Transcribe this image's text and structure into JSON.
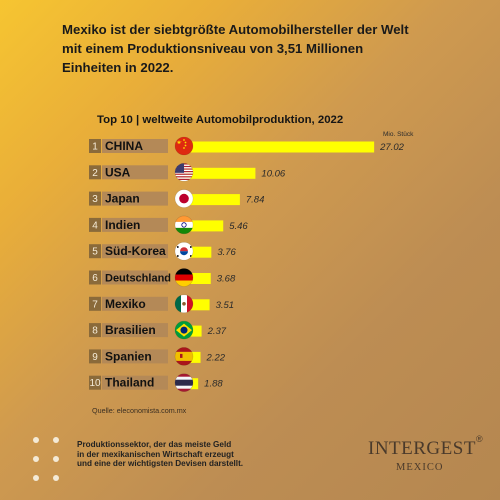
{
  "headline": {
    "line1": "Mexiko ist der siebtgrößte Automobilhersteller der Welt",
    "line2": "mit einem Produktionsniveau von 3,51 Millionen",
    "line3": "Einheiten in 2022."
  },
  "chart_data": {
    "type": "bar",
    "orientation": "horizontal",
    "title": "Top 10 | weltweite Automobilproduktion, 2022",
    "unit_label": "Mio. Stück",
    "ranks": [
      "1",
      "2",
      "3",
      "4",
      "5",
      "6",
      "7",
      "8",
      "9",
      "10"
    ],
    "categories": [
      "CHINA",
      "USA",
      "Japan",
      "Indien",
      "Süd-Korea",
      "Deutschland",
      "Mexiko",
      "Brasilien",
      "Spanien",
      "Thailand"
    ],
    "values": [
      27.02,
      10.06,
      7.84,
      5.46,
      3.76,
      3.68,
      3.51,
      2.37,
      2.22,
      1.88
    ],
    "value_labels": [
      "27.02",
      "10.06",
      "7.84",
      "5.46",
      "3.76",
      "3.68",
      "3.51",
      "2.37",
      "2.22",
      "1.88"
    ],
    "flag_icons": [
      "china-flag-icon",
      "usa-flag-icon",
      "japan-flag-icon",
      "india-flag-icon",
      "south-korea-flag-icon",
      "germany-flag-icon",
      "mexico-flag-icon",
      "brazil-flag-icon",
      "spain-flag-icon",
      "thailand-flag-icon"
    ],
    "bar_color": "#ffff00",
    "grid": false,
    "legend": "none"
  },
  "source": "Quelle: eleconomista.com.mx",
  "footer": {
    "line1": "Produktionssektor, der das meiste Geld",
    "line2": "in der mexikanischen Wirtschaft erzeugt",
    "line3": "und eine der wichtigsten Devisen darstellt."
  },
  "logo": {
    "name": "INTERGEST",
    "registered": "®",
    "subtitle": "MEXICO"
  },
  "colors": {
    "background_top": "#f6c531",
    "background_bottom": "#b58750",
    "rank_box": "#8a6a3a",
    "label_box": "#b48957"
  }
}
